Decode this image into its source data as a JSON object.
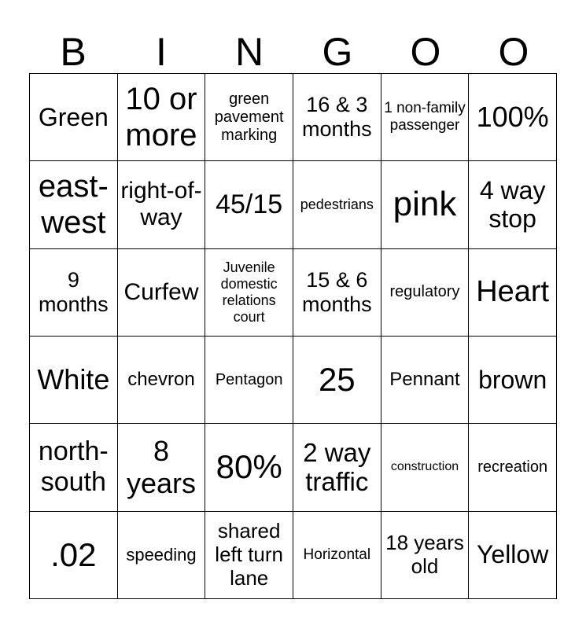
{
  "header": [
    "B",
    "I",
    "N",
    "G",
    "O",
    "O"
  ],
  "cells": [
    "Green",
    "10 or more",
    "green pavement marking",
    "16 & 3 months",
    "1 non-family passenger",
    "100%",
    "east-west",
    "right-of-way",
    "45/15",
    "pedestrians",
    "pink",
    "4 way stop",
    "9 months",
    "Curfew",
    "Juvenile domestic relations court",
    "15 & 6 months",
    "regulatory",
    "Heart",
    "White",
    "chevron",
    "Pentagon",
    "25",
    "Pennant",
    "brown",
    "north-south",
    "8 years",
    "80%",
    "2 way traffic",
    "construction",
    "recreation",
    ".02",
    "speeding",
    "shared left turn lane",
    "Horizontal",
    "18 years old",
    "Yellow"
  ]
}
